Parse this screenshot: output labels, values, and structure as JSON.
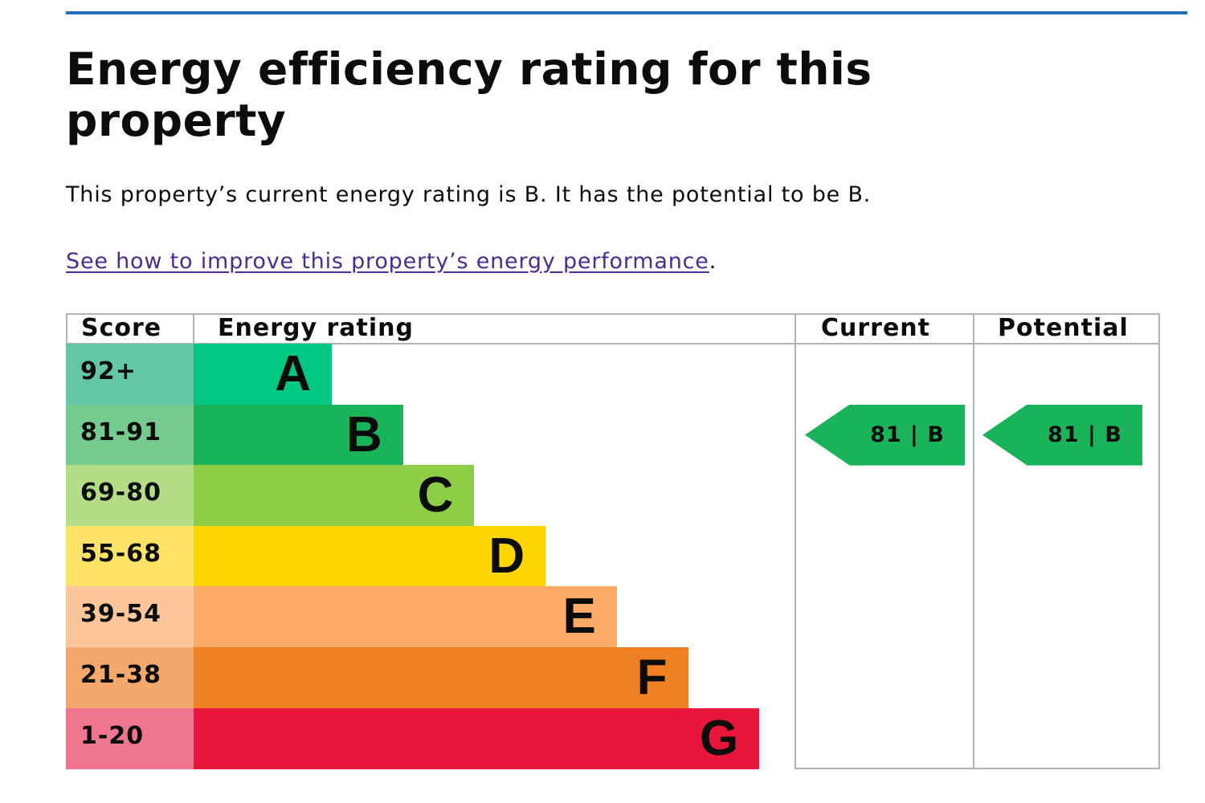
{
  "page": {
    "heading": "Energy efficiency rating for this property",
    "summary": "This property’s current energy rating is B. It has the potential to be B.",
    "improve_link": "See how to improve this property’s energy performance",
    "improve_link_suffix": "."
  },
  "chart_data": {
    "type": "table",
    "headers": {
      "score": "Score",
      "rating": "Energy rating",
      "current": "Current",
      "potential": "Potential"
    },
    "bands": [
      {
        "score": "92+",
        "letter": "A",
        "color": "#00c781",
        "score_bg": "#64c7a3"
      },
      {
        "score": "81-91",
        "letter": "B",
        "color": "#19b459",
        "score_bg": "#75cb8f"
      },
      {
        "score": "69-80",
        "letter": "C",
        "color": "#8dce46",
        "score_bg": "#b4dd87"
      },
      {
        "score": "55-68",
        "letter": "D",
        "color": "#ffd500",
        "score_bg": "#ffe266"
      },
      {
        "score": "39-54",
        "letter": "E",
        "color": "#fcaa65",
        "score_bg": "#fdc69a"
      },
      {
        "score": "21-38",
        "letter": "F",
        "color": "#ef8023",
        "score_bg": "#f4a86b"
      },
      {
        "score": "1-20",
        "letter": "G",
        "color": "#e9153b",
        "score_bg": "#f07690"
      }
    ],
    "current": {
      "value": 81,
      "letter": "B",
      "label": "81 | B",
      "color": "#19b459"
    },
    "potential": {
      "value": 81,
      "letter": "B",
      "label": "81 | B",
      "color": "#19b459"
    }
  }
}
